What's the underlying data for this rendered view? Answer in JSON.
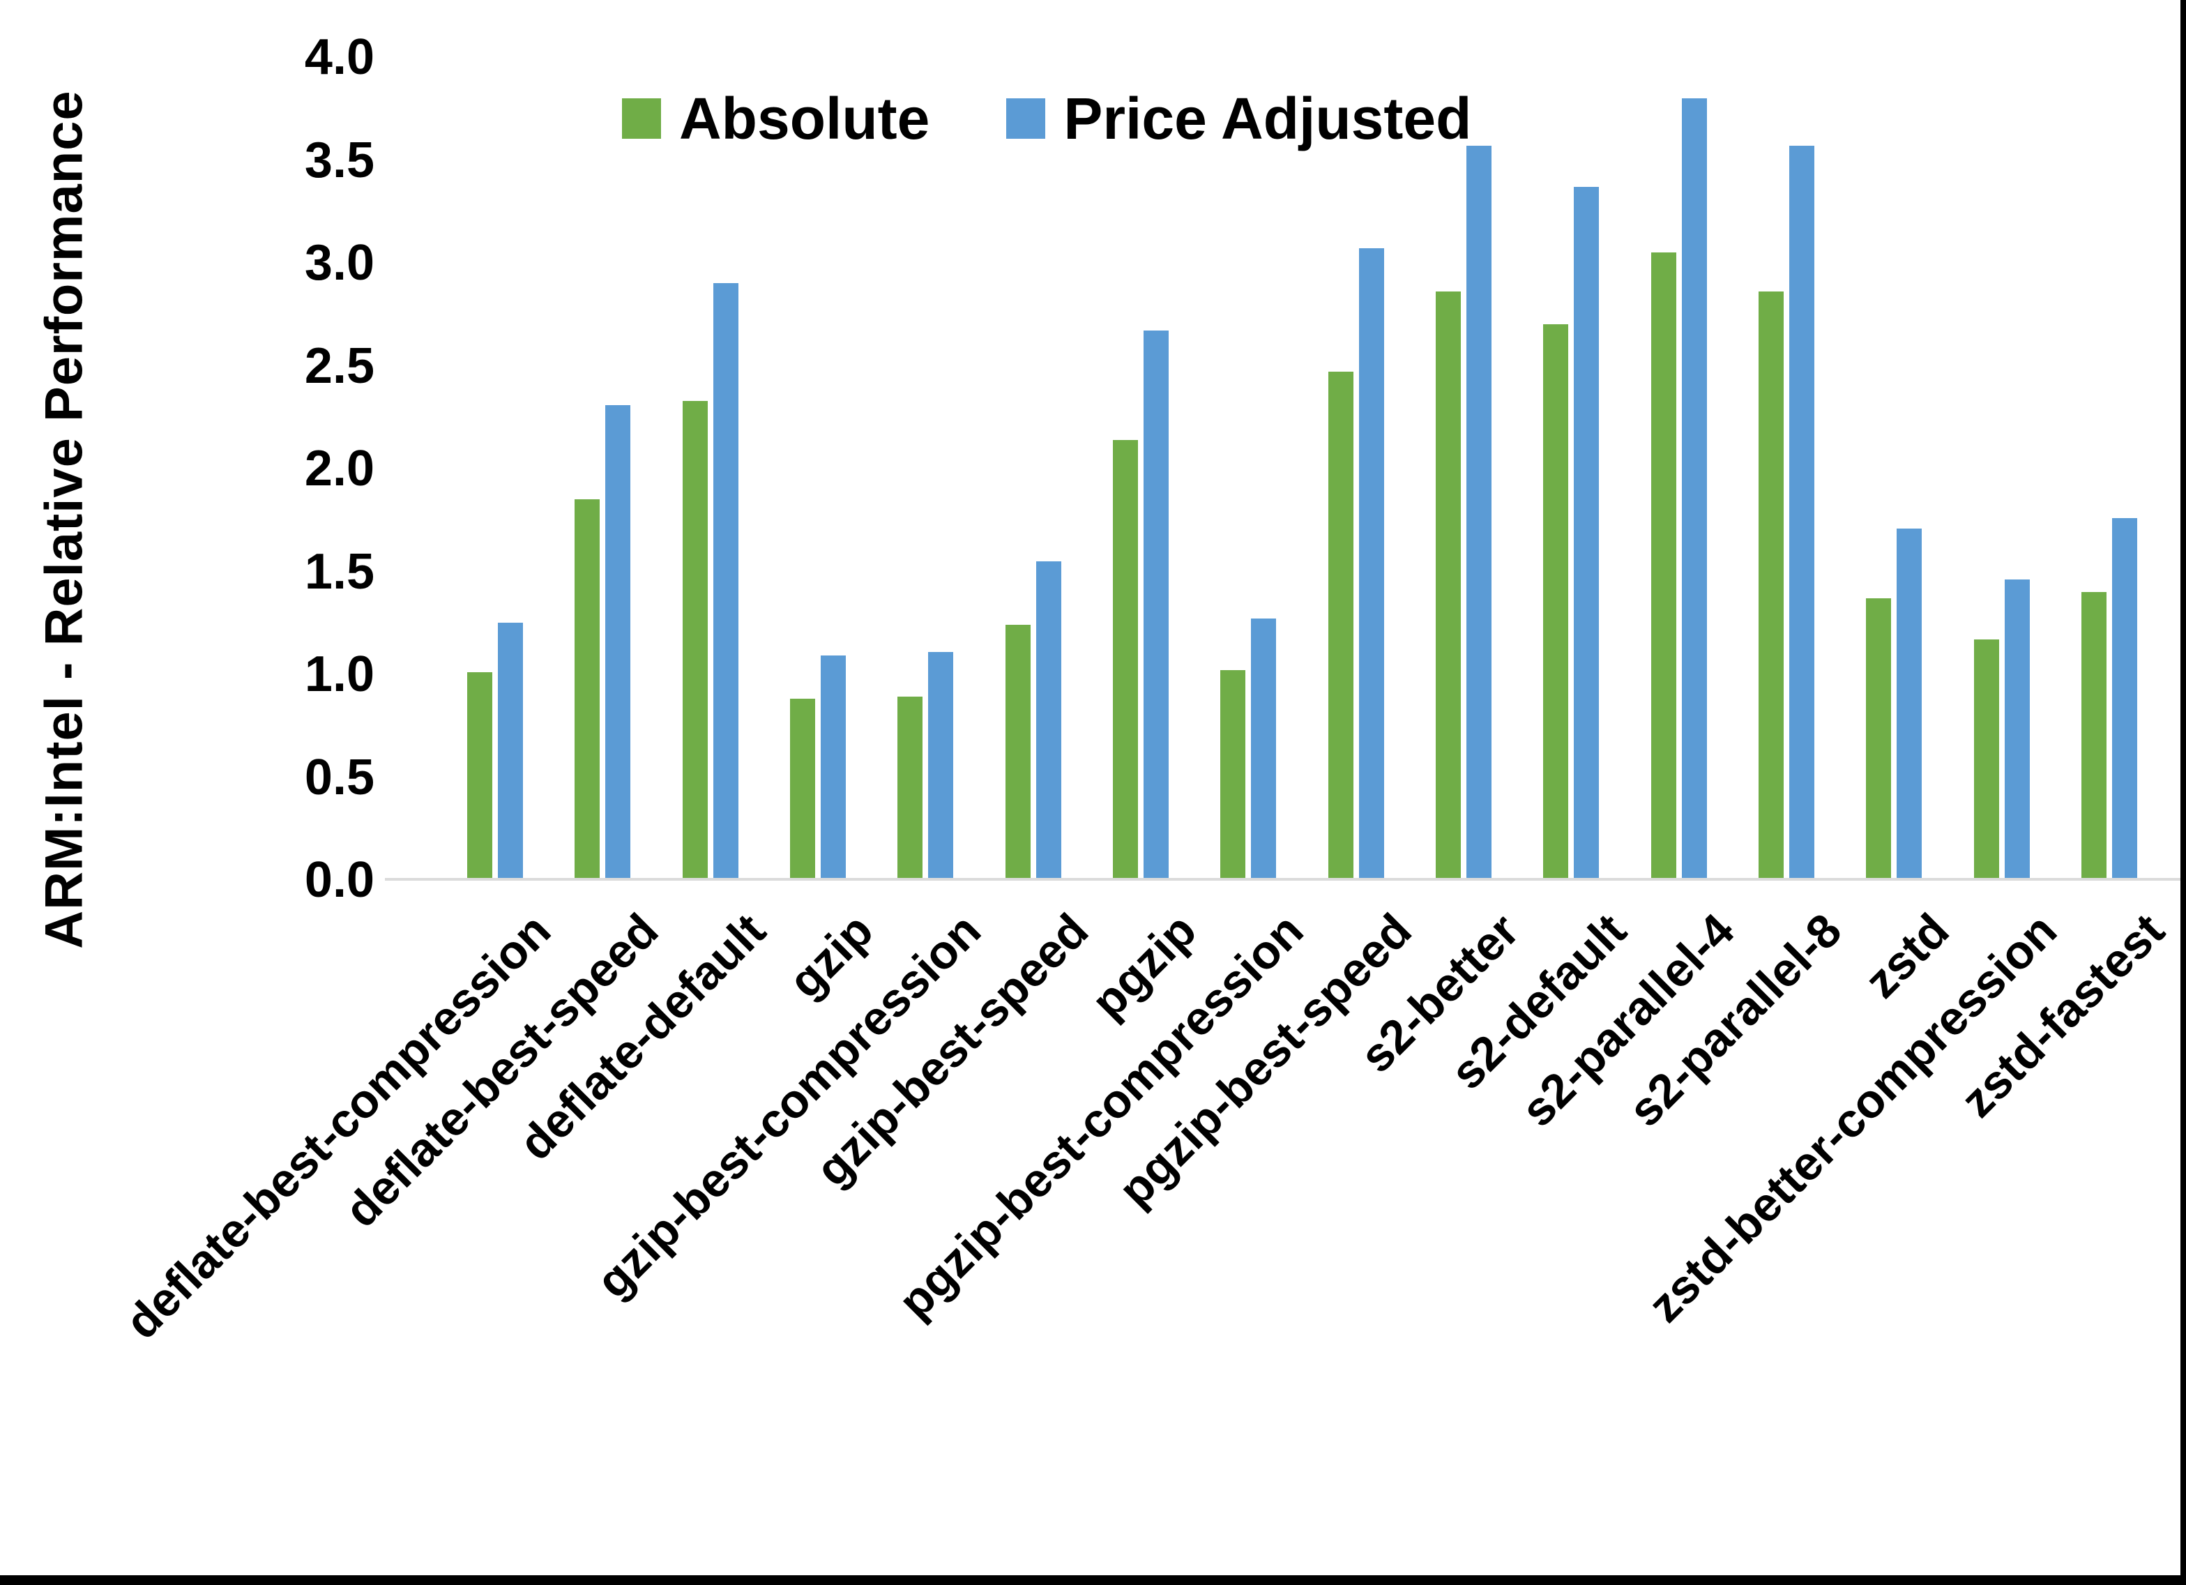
{
  "chart_data": {
    "type": "bar",
    "title": "",
    "ylabel": "ARM:Intel - Relative Performance",
    "xlabel": "",
    "ylim": [
      0.0,
      4.0
    ],
    "ytick_step": 0.5,
    "yticks": [
      "4.0",
      "3.5",
      "3.0",
      "2.5",
      "2.0",
      "1.5",
      "1.0",
      "0.5",
      "0.0"
    ],
    "grid": false,
    "legend_position": "top-center",
    "categories": [
      "deflate-best-compression",
      "deflate-best-speed",
      "deflate-default",
      "gzip",
      "gzip-best-compression",
      "gzip-best-speed",
      "pgzip",
      "pgzip-best-compression",
      "pgzip-best-speed",
      "s2-better",
      "s2-default",
      "s2-parallel-4",
      "s2-parallel-8",
      "zstd",
      "zstd-better-compression",
      "zstd-fastest"
    ],
    "series": [
      {
        "name": "Absolute",
        "color": "#70AD47",
        "values": [
          1.01,
          1.85,
          2.33,
          0.88,
          0.89,
          1.24,
          2.14,
          1.02,
          2.47,
          2.86,
          2.7,
          3.05,
          2.86,
          1.37,
          1.17,
          1.4
        ]
      },
      {
        "name": "Price Adjusted",
        "color": "#5B9BD5",
        "values": [
          1.25,
          2.31,
          2.9,
          1.09,
          1.11,
          1.55,
          2.67,
          1.27,
          3.07,
          3.57,
          3.37,
          3.8,
          3.57,
          1.71,
          1.46,
          1.76
        ]
      }
    ],
    "axis_line_color": "#DBDBDB",
    "text_color": "#000000"
  }
}
